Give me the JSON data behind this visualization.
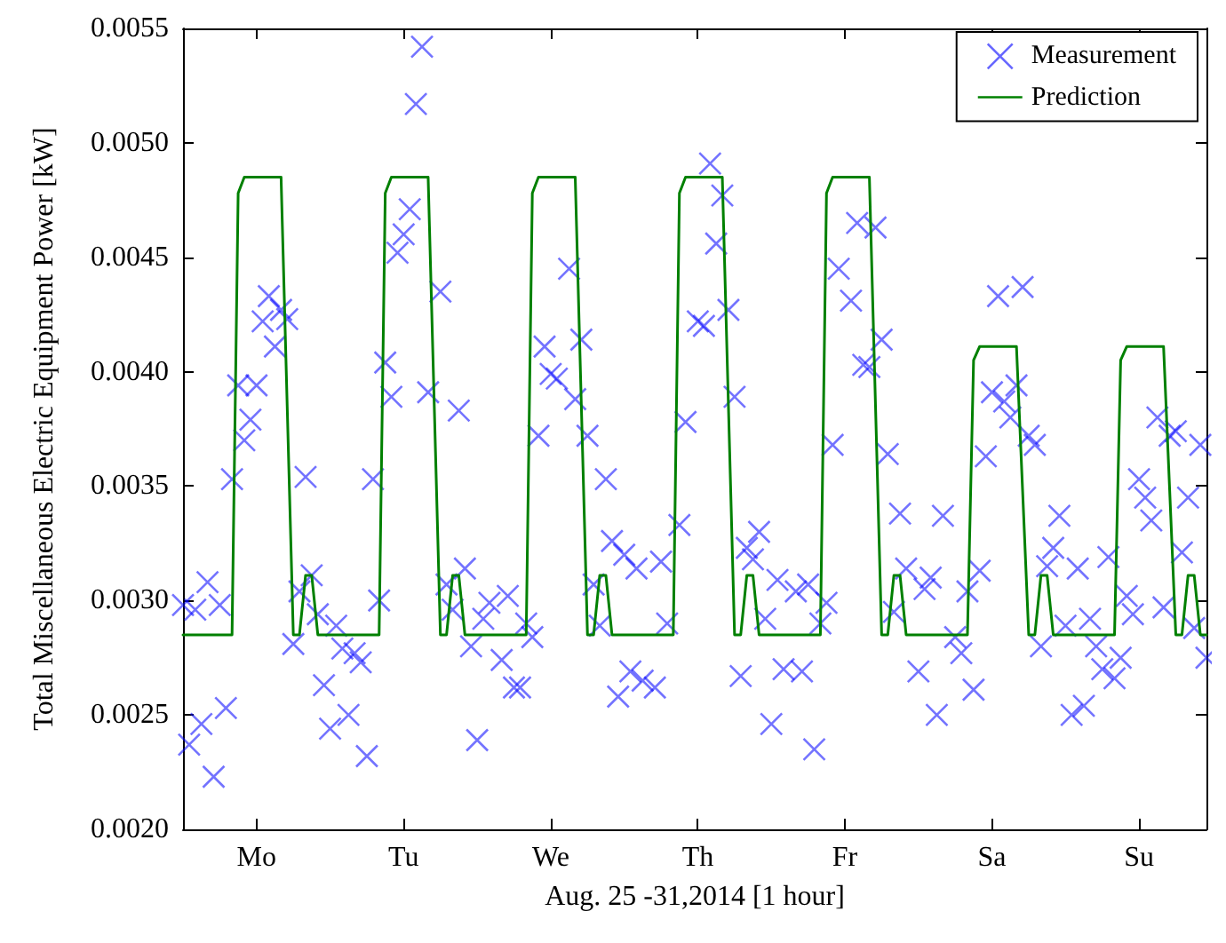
{
  "chart_data": {
    "type": "scatter",
    "xlabel": "Aug. 25 -31,2014 [1 hour]",
    "ylabel": "Total Miscellaneous Electric Equipment Power [kW]",
    "categories": [
      null,
      null,
      null,
      null,
      null,
      null,
      null,
      null,
      null,
      null,
      null,
      null,
      "Mo",
      null,
      null,
      null,
      null,
      null,
      null,
      null,
      null,
      null,
      null,
      null,
      null,
      null,
      null,
      null,
      null,
      null,
      null,
      null,
      null,
      null,
      null,
      null,
      "Tu",
      null,
      null,
      null,
      null,
      null,
      null,
      null,
      null,
      null,
      null,
      null,
      null,
      null,
      null,
      null,
      null,
      null,
      null,
      null,
      null,
      null,
      null,
      null,
      "We",
      null,
      null,
      null,
      null,
      null,
      null,
      null,
      null,
      null,
      null,
      null,
      null,
      null,
      null,
      null,
      null,
      null,
      null,
      null,
      null,
      null,
      null,
      null,
      "Th",
      null,
      null,
      null,
      null,
      null,
      null,
      null,
      null,
      null,
      null,
      null,
      null,
      null,
      null,
      null,
      null,
      null,
      null,
      null,
      null,
      null,
      null,
      null,
      "Fr",
      null,
      null,
      null,
      null,
      null,
      null,
      null,
      null,
      null,
      null,
      null,
      null,
      null,
      null,
      null,
      null,
      null,
      null,
      null,
      null,
      null,
      null,
      null,
      "Sa",
      null,
      null,
      null,
      null,
      null,
      null,
      null,
      null,
      null,
      null,
      null,
      null,
      null,
      null,
      null,
      null,
      null,
      null,
      null,
      null,
      null,
      null,
      null,
      "Su",
      null,
      null,
      null,
      null,
      null,
      null,
      null,
      null,
      null,
      null,
      null
    ],
    "ylim": [
      0.002,
      0.0055
    ],
    "yticks": [
      {
        "value": 0.002,
        "label": "0.0020"
      },
      {
        "value": 0.0025,
        "label": "0.0025"
      },
      {
        "value": 0.003,
        "label": "0.0030"
      },
      {
        "value": 0.0035,
        "label": "0.0035"
      },
      {
        "value": 0.004,
        "label": "0.0040"
      },
      {
        "value": 0.0045,
        "label": "0.0045"
      },
      {
        "value": 0.005,
        "label": "0.0050"
      },
      {
        "value": 0.0055,
        "label": "0.0055"
      }
    ],
    "grid": false,
    "legend": "top right",
    "series": [
      {
        "name": "Measurement",
        "marker": "cross",
        "color": "#0000ff",
        "values": [
          0.00298,
          0.00237,
          0.00296,
          0.00246,
          0.00308,
          0.00223,
          0.00298,
          0.00253,
          0.00353,
          0.00394,
          0.0037,
          0.00379,
          0.00394,
          0.00422,
          0.00433,
          0.00411,
          0.00427,
          0.00423,
          0.00281,
          0.00304,
          0.00354,
          0.00311,
          0.00294,
          0.00263,
          0.00244,
          0.00289,
          0.00279,
          0.0025,
          0.00277,
          0.00273,
          0.00232,
          0.00353,
          0.003,
          0.00404,
          0.00389,
          0.00452,
          0.0046,
          0.00471,
          0.00517,
          0.00542,
          0.00391,
          null,
          0.00435,
          0.00307,
          0.00296,
          0.00383,
          0.00314,
          0.0028,
          0.00239,
          0.00292,
          0.00299,
          null,
          0.00274,
          0.00302,
          0.00262,
          0.00262,
          0.0029,
          0.00284,
          0.00372,
          0.00411,
          0.00399,
          0.00397,
          null,
          0.00445,
          0.00388,
          0.00414,
          0.00372,
          0.00307,
          0.00289,
          0.00353,
          0.00326,
          0.00258,
          0.0032,
          0.00269,
          0.00314,
          0.00265,
          null,
          0.00262,
          0.00317,
          0.0029,
          null,
          0.00333,
          0.00378,
          null,
          0.00422,
          0.0042,
          0.00491,
          0.00456,
          0.00477,
          0.00427,
          0.00389,
          0.00267,
          0.00323,
          0.00318,
          0.0033,
          0.00292,
          0.00246,
          0.00309,
          0.0027,
          null,
          0.00304,
          0.00269,
          0.00307,
          0.00235,
          0.0029,
          0.00299,
          0.00368,
          0.00445,
          null,
          0.00431,
          0.00465,
          0.00403,
          0.00402,
          0.00463,
          0.00414,
          0.00364,
          0.00295,
          0.00338,
          0.00314,
          null,
          0.00269,
          0.00305,
          0.0031,
          0.0025,
          0.00337,
          null,
          0.00284,
          0.00277,
          0.00304,
          0.00261,
          0.00313,
          0.00363,
          0.00391,
          0.00433,
          0.00387,
          0.0038,
          0.00394,
          0.00437,
          0.00372,
          0.00368,
          0.0028,
          0.00315,
          0.00323,
          0.00337,
          0.00289,
          0.0025,
          0.00314,
          0.00254,
          0.00292,
          0.0028,
          0.0027,
          0.00319,
          0.00266,
          0.00275,
          0.00302,
          0.00294,
          0.00353,
          0.00345,
          0.00335,
          0.0038,
          0.00297,
          0.00372,
          0.00374,
          0.00321,
          0.00345,
          0.00288,
          0.00368,
          0.00275
        ]
      },
      {
        "name": "Prediction",
        "type": "line",
        "marker": "none",
        "line_style": "solid",
        "color": "#008000",
        "values": [
          0.00285,
          0.00285,
          0.00285,
          0.00285,
          0.00285,
          0.00285,
          0.00285,
          0.00285,
          0.00285,
          0.00478,
          0.00485,
          0.00485,
          0.00485,
          0.00485,
          0.00485,
          0.00485,
          0.00485,
          0.00385,
          0.00285,
          0.00285,
          0.00311,
          0.00311,
          0.00285,
          0.00285,
          0.00285,
          0.00285,
          0.00285,
          0.00285,
          0.00285,
          0.00285,
          0.00285,
          0.00285,
          0.00285,
          0.00478,
          0.00485,
          0.00485,
          0.00485,
          0.00485,
          0.00485,
          0.00485,
          0.00485,
          0.00385,
          0.00285,
          0.00285,
          0.00311,
          0.00311,
          0.00285,
          0.00285,
          0.00285,
          0.00285,
          0.00285,
          0.00285,
          0.00285,
          0.00285,
          0.00285,
          0.00285,
          0.00285,
          0.00478,
          0.00485,
          0.00485,
          0.00485,
          0.00485,
          0.00485,
          0.00485,
          0.00485,
          0.00385,
          0.00285,
          0.00285,
          0.00311,
          0.00311,
          0.00285,
          0.00285,
          0.00285,
          0.00285,
          0.00285,
          0.00285,
          0.00285,
          0.00285,
          0.00285,
          0.00285,
          0.00285,
          0.00478,
          0.00485,
          0.00485,
          0.00485,
          0.00485,
          0.00485,
          0.00485,
          0.00485,
          0.00385,
          0.00285,
          0.00285,
          0.00311,
          0.00311,
          0.00285,
          0.00285,
          0.00285,
          0.00285,
          0.00285,
          0.00285,
          0.00285,
          0.00285,
          0.00285,
          0.00285,
          0.00285,
          0.00478,
          0.00485,
          0.00485,
          0.00485,
          0.00485,
          0.00485,
          0.00485,
          0.00485,
          0.00385,
          0.00285,
          0.00285,
          0.00311,
          0.00311,
          0.00285,
          0.00285,
          0.00285,
          0.00285,
          0.00285,
          0.00285,
          0.00285,
          0.00285,
          0.00285,
          0.00285,
          0.00285,
          0.00405,
          0.00411,
          0.00411,
          0.00411,
          0.00411,
          0.00411,
          0.00411,
          0.00411,
          0.00348,
          0.00285,
          0.00285,
          0.00311,
          0.00311,
          0.00285,
          0.00285,
          0.00285,
          0.00285,
          0.00285,
          0.00285,
          0.00285,
          0.00285,
          0.00285,
          0.00285,
          0.00285,
          0.00405,
          0.00411,
          0.00411,
          0.00411,
          0.00411,
          0.00411,
          0.00411,
          0.00411,
          0.00348,
          0.00285,
          0.00285,
          0.00311,
          0.00311,
          0.00285,
          0.00285
        ]
      }
    ]
  }
}
